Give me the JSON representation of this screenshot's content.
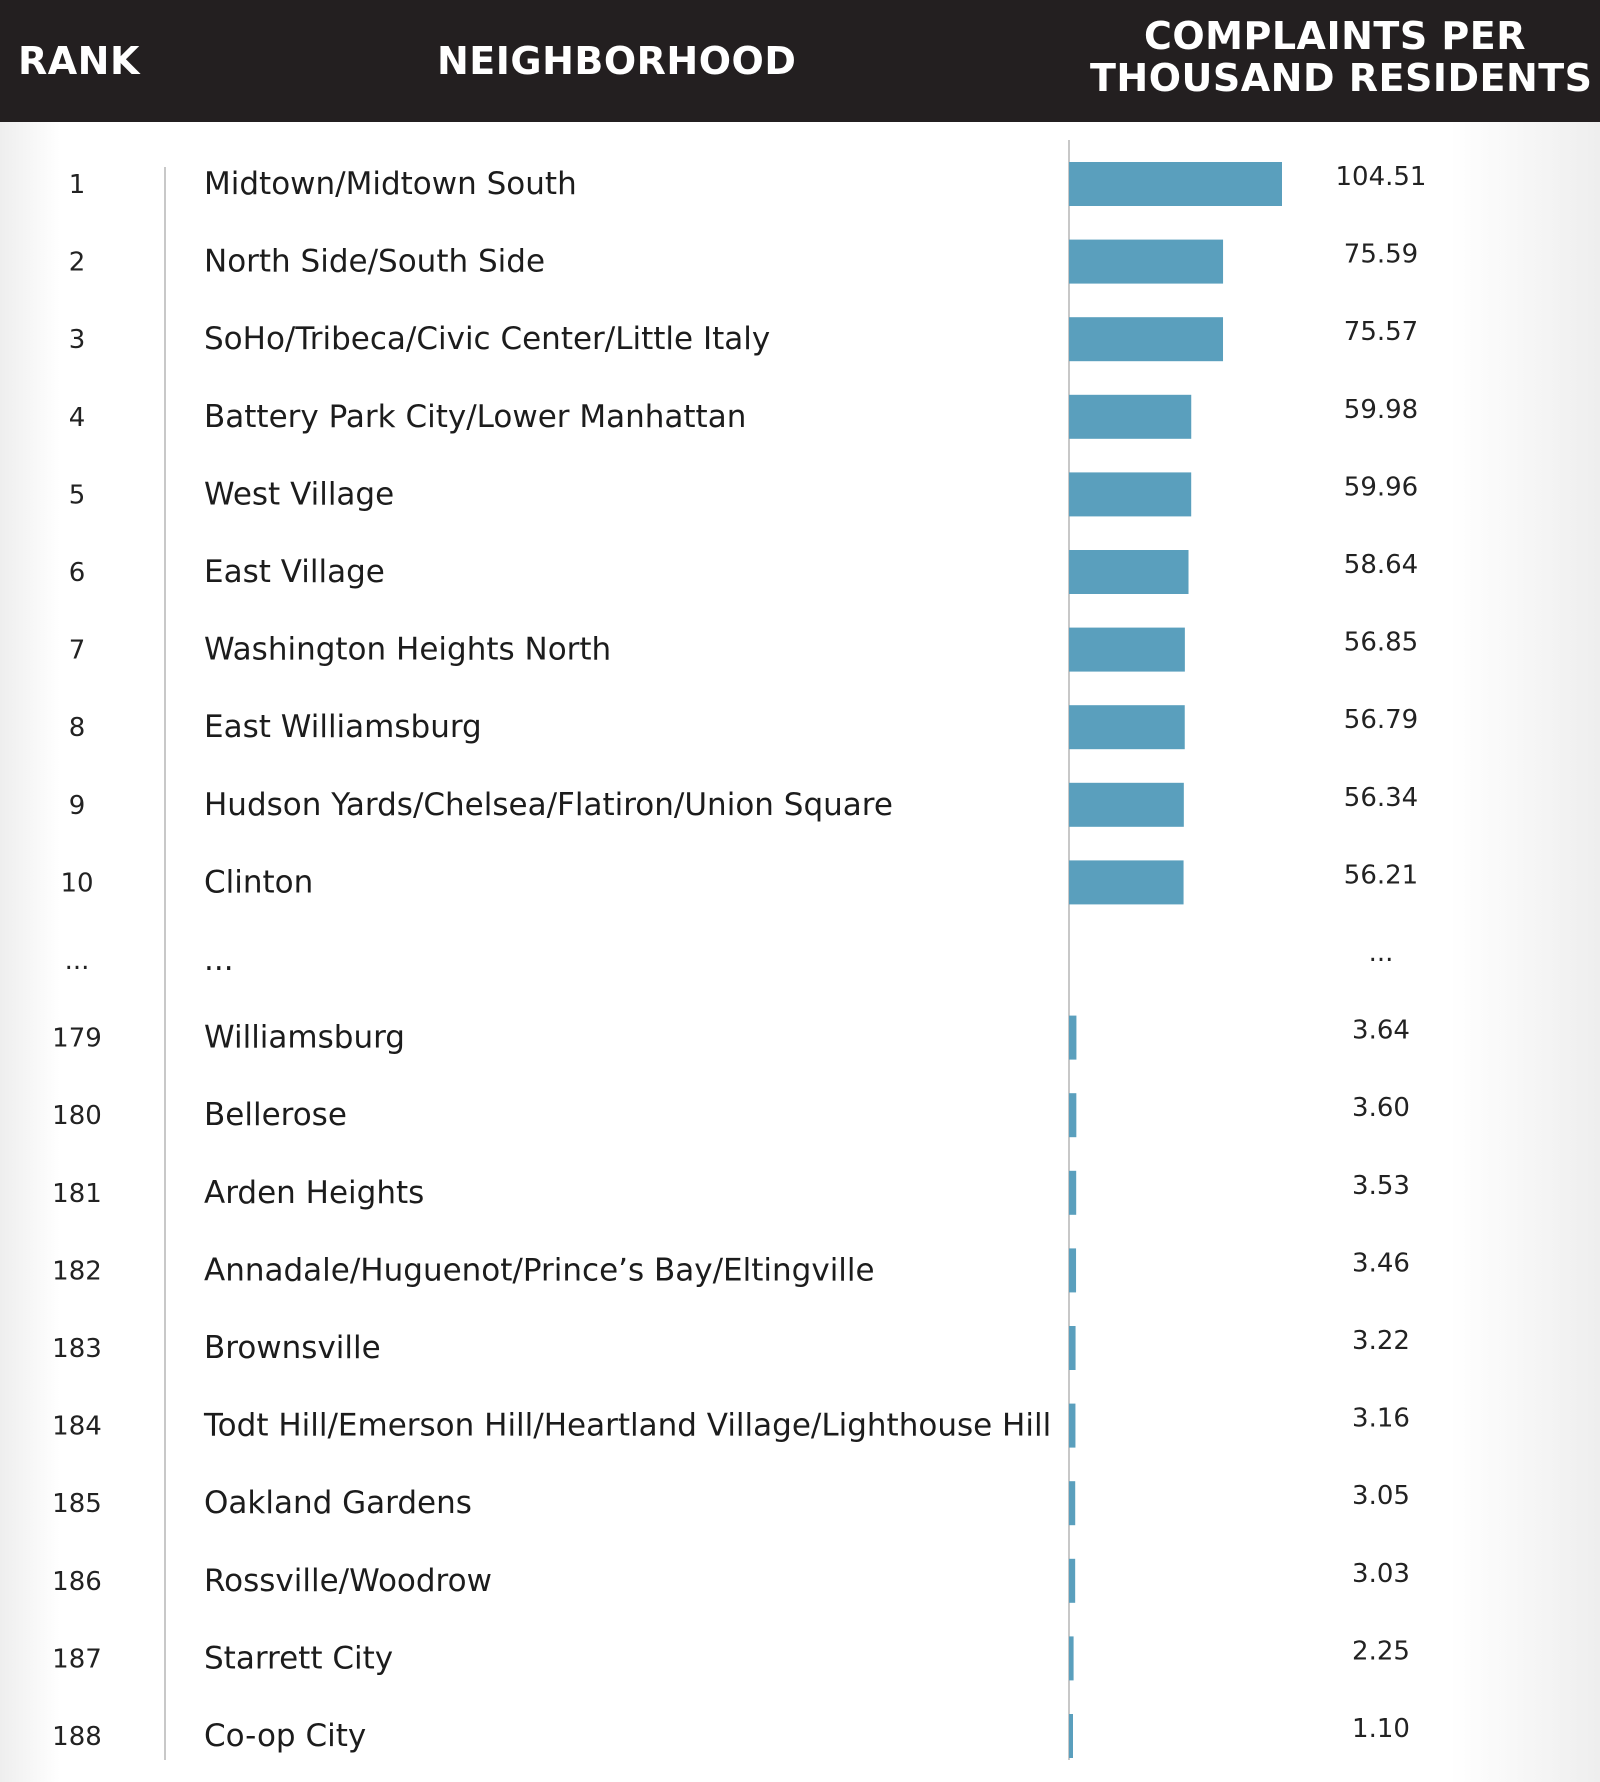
{
  "headers": {
    "rank": "RANK",
    "neighborhood": "NEIGHBORHOOD",
    "metric_line1": "COMPLAINTS PER",
    "metric_line2": "THOUSAND RESIDENTS"
  },
  "colors": {
    "bar": "#5a9fbd",
    "header_bg": "#231f20",
    "divider": "#c8c8c8"
  },
  "chart_data": {
    "type": "bar",
    "orientation": "horizontal",
    "value_label": "COMPLAINTS PER THOUSAND RESIDENTS",
    "rows": [
      {
        "rank": "1",
        "neighborhood": "Midtown/Midtown South",
        "value": 104.51,
        "label": "104.51"
      },
      {
        "rank": "2",
        "neighborhood": "North Side/South Side",
        "value": 75.59,
        "label": "75.59"
      },
      {
        "rank": "3",
        "neighborhood": "SoHo/Tribeca/Civic Center/Little Italy",
        "value": 75.57,
        "label": "75.57"
      },
      {
        "rank": "4",
        "neighborhood": "Battery Park City/Lower Manhattan",
        "value": 59.98,
        "label": "59.98"
      },
      {
        "rank": "5",
        "neighborhood": "West Village",
        "value": 59.96,
        "label": "59.96"
      },
      {
        "rank": "6",
        "neighborhood": "East Village",
        "value": 58.64,
        "label": "58.64"
      },
      {
        "rank": "7",
        "neighborhood": "Washington Heights North",
        "value": 56.85,
        "label": "56.85"
      },
      {
        "rank": "8",
        "neighborhood": "East Williamsburg",
        "value": 56.79,
        "label": "56.79"
      },
      {
        "rank": "9",
        "neighborhood": "Hudson Yards/Chelsea/Flatiron/Union Square",
        "value": 56.34,
        "label": "56.34"
      },
      {
        "rank": "10",
        "neighborhood": "Clinton",
        "value": 56.21,
        "label": "56.21"
      },
      {
        "rank": "...",
        "neighborhood": "...",
        "value": null,
        "label": "..."
      },
      {
        "rank": "179",
        "neighborhood": "Williamsburg",
        "value": 3.64,
        "label": "3.64"
      },
      {
        "rank": "180",
        "neighborhood": "Bellerose",
        "value": 3.6,
        "label": "3.60"
      },
      {
        "rank": "181",
        "neighborhood": "Arden Heights",
        "value": 3.53,
        "label": "3.53"
      },
      {
        "rank": "182",
        "neighborhood": "Annadale/Huguenot/Prince’s Bay/Eltingville",
        "value": 3.46,
        "label": "3.46"
      },
      {
        "rank": "183",
        "neighborhood": "Brownsville",
        "value": 3.22,
        "label": "3.22"
      },
      {
        "rank": "184",
        "neighborhood": "Todt Hill/Emerson Hill/Heartland Village/Lighthouse Hill",
        "value": 3.16,
        "label": "3.16"
      },
      {
        "rank": "185",
        "neighborhood": "Oakland Gardens",
        "value": 3.05,
        "label": "3.05"
      },
      {
        "rank": "186",
        "neighborhood": "Rossville/Woodrow",
        "value": 3.03,
        "label": "3.03"
      },
      {
        "rank": "187",
        "neighborhood": "Starrett City",
        "value": 2.25,
        "label": "2.25"
      },
      {
        "rank": "188",
        "neighborhood": "Co-op City",
        "value": 1.1,
        "label": "1.10"
      }
    ],
    "xlim": [
      0,
      104.51
    ],
    "grid": false,
    "legend": "none"
  }
}
